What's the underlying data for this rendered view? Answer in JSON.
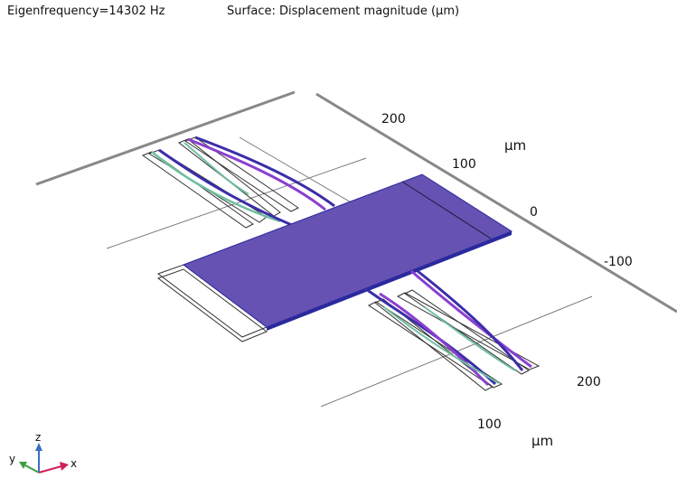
{
  "header": {
    "eigenfrequency": "Eigenfrequency=14302 Hz",
    "surface": "Surface: Displacement magnitude (µm)"
  },
  "axes": {
    "y_ticks": [
      "200",
      "100",
      "0",
      "-100"
    ],
    "y_unit": "µm",
    "x_ticks": [
      "200",
      "100"
    ],
    "x_unit": "µm"
  },
  "triad": {
    "x": "x",
    "y": "y",
    "z": "z"
  },
  "colors": {
    "plate": "#6652b2",
    "plate_edge": "#2a2a9e",
    "beam_violet": "#8a3fd0",
    "beam_blue": "#3b2ea8",
    "beam_green": "#6fbfa0",
    "axis_gray": "#888888",
    "triad_x": "#d0205a",
    "triad_y": "#3aa040",
    "triad_z": "#3a70c0"
  }
}
